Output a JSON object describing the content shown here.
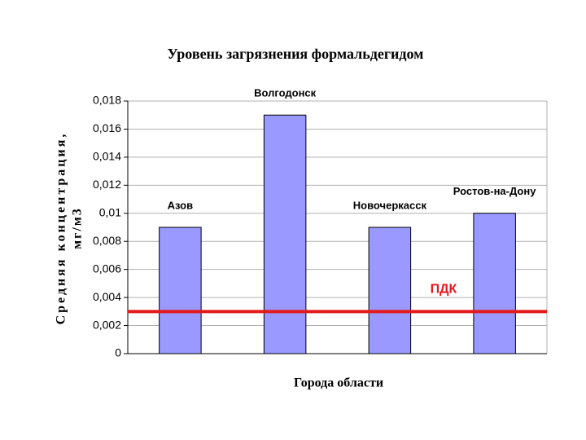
{
  "chart_data": {
    "type": "bar",
    "title": "Уровень загрязнения формальдегидом",
    "x_label": "Города области",
    "y_label": [
      "Средняя концентрация,",
      "мг/м3"
    ],
    "categories": [
      "Азов",
      "Волгодонск",
      "Новочеркасск",
      "Ростов-на-Дону"
    ],
    "values": [
      0.009,
      0.017,
      0.009,
      0.01
    ],
    "color": "#9999ff",
    "ylim": [
      0,
      0.018
    ],
    "yticks": [
      0,
      {
        "value": 0.002,
        "label": "0,002"
      },
      {
        "value": 0.004,
        "label": "0,004"
      },
      {
        "value": 0.006,
        "label": "0,006"
      },
      {
        "value": 0.008,
        "label": "0,008"
      },
      {
        "value": 0.01,
        "label": "0,01"
      },
      {
        "value": 0.012,
        "label": "0,012"
      },
      {
        "value": 0.014,
        "label": "0,014"
      },
      {
        "value": 0.016,
        "label": "0,016"
      },
      {
        "value": 0.018,
        "label": "0,018"
      }
    ],
    "grid": true,
    "reference_line": {
      "value": 0.003,
      "label": "ПДК",
      "color": "#e31a1c"
    }
  }
}
